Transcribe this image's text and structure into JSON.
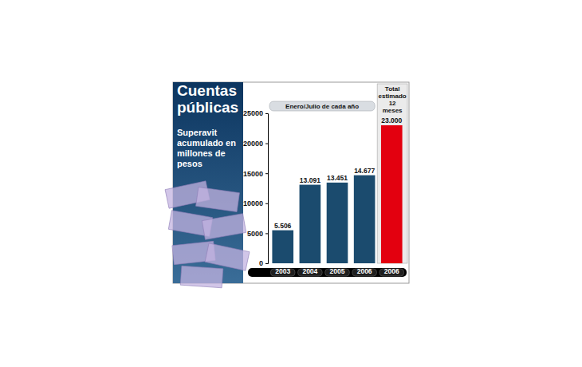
{
  "chart_data": {
    "type": "bar",
    "title": "Cuentas públicas",
    "subtitle": "Superavit acumulado en millones de pesos",
    "annotations": [
      "Enero/Julio de cada año",
      "Total estimado 12 meses"
    ],
    "categories": [
      "2003",
      "2004",
      "2005",
      "2006",
      "2006"
    ],
    "values": [
      5506,
      13091,
      13451,
      14677,
      23000
    ],
    "value_labels": [
      "5.506",
      "13.091",
      "13.451",
      "14.677",
      "23.000"
    ],
    "colors": [
      "#1b4b6e",
      "#1b4b6e",
      "#1b4b6e",
      "#1b4b6e",
      "#e3000f"
    ],
    "ylim": [
      0,
      25000
    ],
    "yticks": [
      0,
      5000,
      10000,
      15000,
      20000,
      25000
    ],
    "grid": false,
    "data_labels": true
  }
}
